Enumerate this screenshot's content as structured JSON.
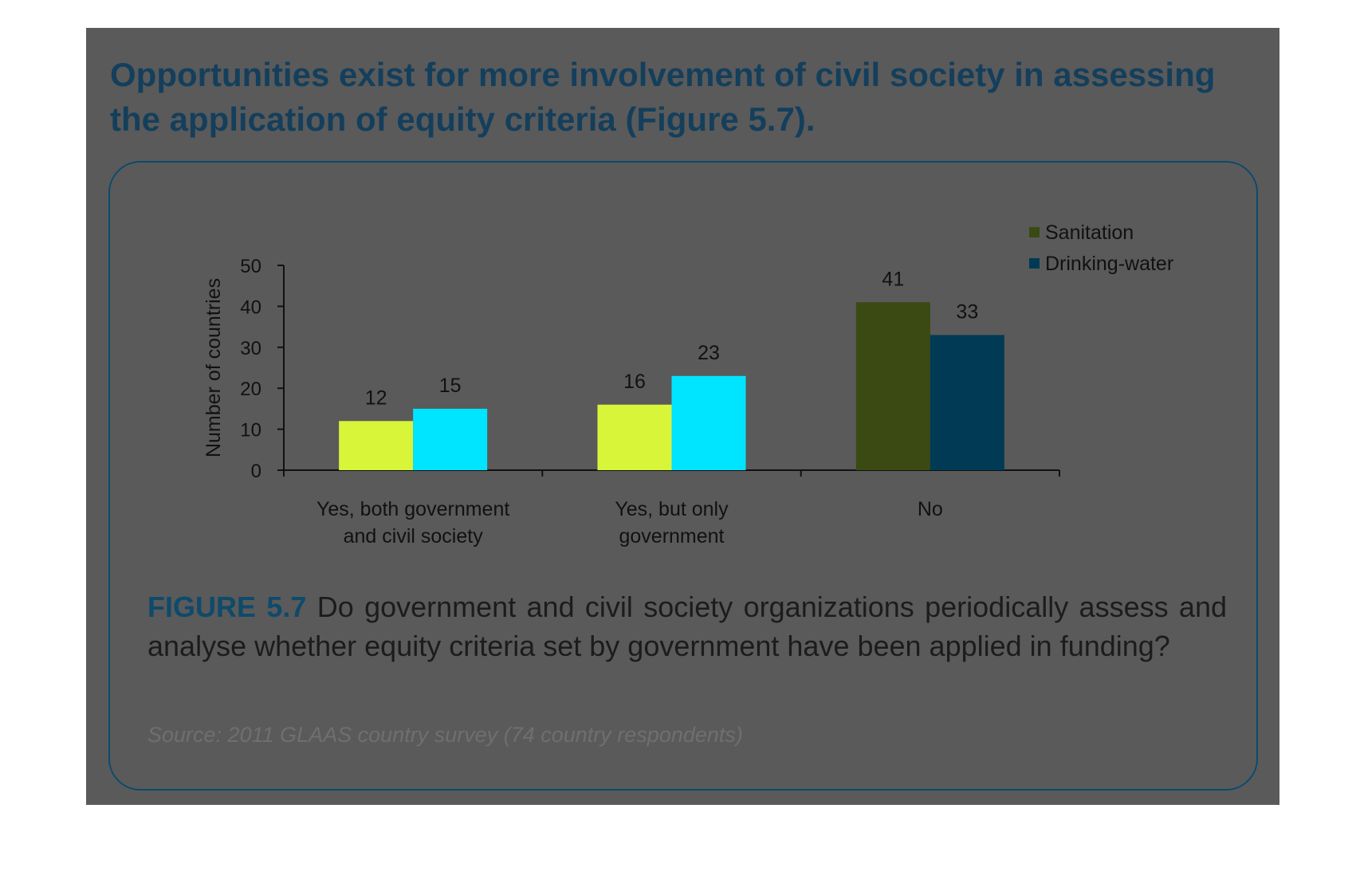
{
  "page": {
    "heading": "Opportunities exist for more involvement of civil society in assessing the application of equity criteria (Figure 5.7).",
    "caption_label": "FIGURE 5.7",
    "caption_text": "Do government and civil society organizations periodically assess and analyse whether equity criteria set by government have been applied in funding?",
    "source": "Source: 2011 GLAAS country survey (74 country respondents)"
  },
  "colors": {
    "panel": "#5a5a5a",
    "sanitation": "#3a4a12",
    "drinking_water": "#003a55",
    "heading": "#143f5c",
    "highlight": "#00e5ff"
  },
  "chart_data": {
    "type": "bar",
    "title": "",
    "xlabel": "",
    "ylabel": "Number of countries",
    "ylim": [
      0,
      50
    ],
    "yticks": [
      0,
      10,
      20,
      30,
      40,
      50
    ],
    "categories": [
      [
        "Yes, both government",
        "and civil society"
      ],
      [
        "Yes, but only",
        "government"
      ],
      [
        "No"
      ]
    ],
    "series": [
      {
        "name": "Sanitation",
        "values": [
          12,
          16,
          41
        ],
        "color": "#3a4a12",
        "highlight": "#d8f53a"
      },
      {
        "name": "Drinking-water",
        "values": [
          15,
          23,
          33
        ],
        "color": "#003a55",
        "highlight": "#00e5ff"
      }
    ],
    "legend_position": "top-right",
    "grid": false
  }
}
